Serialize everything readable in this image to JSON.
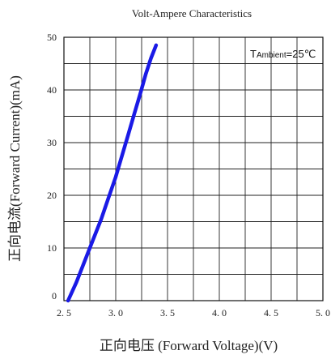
{
  "chart_data": {
    "type": "line",
    "title": "Volt-Ampere Characteristics",
    "xlabel": "正向电压 (Forward Voltage)(V)",
    "ylabel": "正向电流(Forward Current)(mA)",
    "annotation": {
      "prefix": "T",
      "subscript": "Ambient",
      "suffix": "=25℃"
    },
    "xlim": [
      2.5,
      5.0
    ],
    "ylim": [
      0,
      50
    ],
    "xticks": [
      2.5,
      3.0,
      3.5,
      4.0,
      4.5,
      5.0
    ],
    "xtick_labels": [
      "2. 5",
      "3. 0",
      "3. 5",
      "4. 0",
      "4. 5",
      "5. 0"
    ],
    "yticks": [
      0,
      10,
      20,
      30,
      40,
      50
    ],
    "ytick_labels": [
      "0",
      "10",
      "20",
      "30",
      "40",
      "50"
    ],
    "x_minor_step": 0.25,
    "y_minor_step": 5,
    "grid": true,
    "line_color": "#1a1ae6",
    "series": [
      {
        "x": [
          2.54,
          2.62,
          2.7,
          2.78,
          2.86,
          2.93,
          3.0,
          3.06,
          3.12,
          3.18,
          3.24,
          3.29,
          3.34,
          3.39
        ],
        "y": [
          0,
          3.5,
          7.5,
          11.5,
          15.5,
          19.5,
          23.5,
          27.5,
          31.5,
          35.5,
          39.5,
          43.0,
          46.0,
          48.5
        ]
      }
    ]
  }
}
